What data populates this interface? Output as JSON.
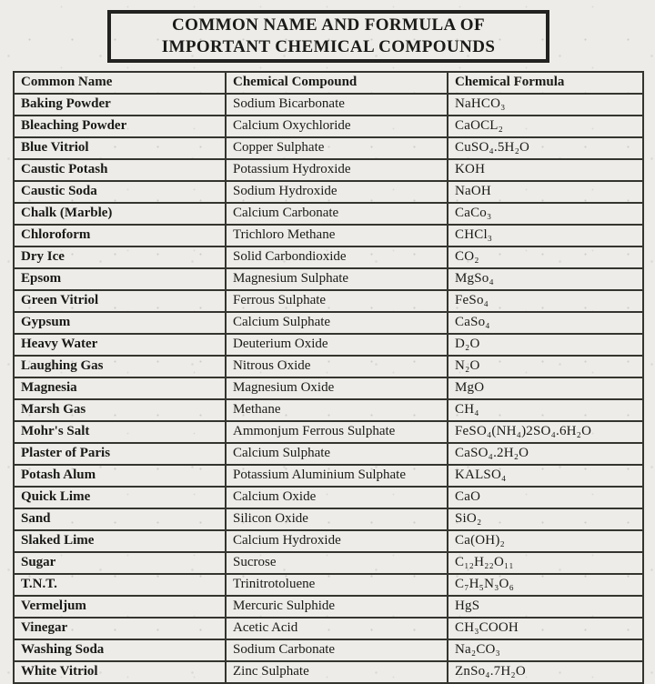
{
  "colors": {
    "paper": "#edece8",
    "ink": "#1a1a18",
    "border": "#35352f"
  },
  "title": {
    "line1": "COMMON NAME AND FORMULA OF",
    "line2": "IMPORTANT CHEMICAL COMPOUNDS"
  },
  "table": {
    "headers": [
      "Common Name",
      "Chemical Compound",
      "Chemical Formula"
    ],
    "rows": [
      {
        "common_name": "Baking Powder",
        "compound": "Sodium Bicarbonate",
        "formula": "NaHCO₃"
      },
      {
        "common_name": "Bleaching Powder",
        "compound": "Calcium Oxychloride",
        "formula": "CaOCL₂"
      },
      {
        "common_name": "Blue Vitriol",
        "compound": "Copper Sulphate",
        "formula": "CuSO₄.5H₂O"
      },
      {
        "common_name": "Caustic Potash",
        "compound": "Potassium Hydroxide",
        "formula": "KOH"
      },
      {
        "common_name": "Caustic Soda",
        "compound": "Sodium Hydroxide",
        "formula": "NaOH"
      },
      {
        "common_name": "Chalk (Marble)",
        "compound": "Calcium Carbonate",
        "formula": "CaCo₃"
      },
      {
        "common_name": "Chloroform",
        "compound": "Trichloro Methane",
        "formula": "CHCl₃"
      },
      {
        "common_name": "Dry Ice",
        "compound": "Solid Carbondioxide",
        "formula": "CO₂"
      },
      {
        "common_name": "Epsom",
        "compound": "Magnesium Sulphate",
        "formula": "MgSo₄"
      },
      {
        "common_name": "Green Vitriol",
        "compound": "Ferrous Sulphate",
        "formula": "FeSo₄"
      },
      {
        "common_name": "Gypsum",
        "compound": "Calcium Sulphate",
        "formula": "CaSo₄"
      },
      {
        "common_name": "Heavy Water",
        "compound": "Deuterium Oxide",
        "formula": "D₂O"
      },
      {
        "common_name": "Laughing Gas",
        "compound": "Nitrous Oxide",
        "formula": "N₂O"
      },
      {
        "common_name": "Magnesia",
        "compound": "Magnesium Oxide",
        "formula": "MgO"
      },
      {
        "common_name": "Marsh Gas",
        "compound": "Methane",
        "formula": "CH₄"
      },
      {
        "common_name": "Mohr's Salt",
        "compound": "Ammonjum Ferrous Sulphate",
        "formula": "FeSO₄(NH₄)2SO₄.6H₂O"
      },
      {
        "common_name": "Plaster of Paris",
        "compound": "Calcium Sulphate",
        "formula": "CaSO₄.2H₂O"
      },
      {
        "common_name": "Potash Alum",
        "compound": "Potassium Aluminium Sulphate",
        "formula": "KALSO₄"
      },
      {
        "common_name": "Quick Lime",
        "compound": "Calcium Oxide",
        "formula": "CaO"
      },
      {
        "common_name": "Sand",
        "compound": "Silicon Oxide",
        "formula": "SiO₂"
      },
      {
        "common_name": "Slaked Lime",
        "compound": "Calcium Hydroxide",
        "formula": "Ca(OH)₂"
      },
      {
        "common_name": "Sugar",
        "compound": "Sucrose",
        "formula": "C₁₂H₂₂O₁₁"
      },
      {
        "common_name": "T.N.T.",
        "compound": "Trinitrotoluene",
        "formula": "C₇H₅N₃O₆"
      },
      {
        "common_name": "Vermeljum",
        "compound": "Mercuric Sulphide",
        "formula": "HgS"
      },
      {
        "common_name": "Vinegar",
        "compound": "Acetic Acid",
        "formula": "CH₃COOH"
      },
      {
        "common_name": "Washing Soda",
        "compound": "Sodium Carbonate",
        "formula": "Na₂CO₃"
      },
      {
        "common_name": "White Vitriol",
        "compound": "Zinc Sulphate",
        "formula": "ZnSo₄.7H₂O"
      }
    ]
  }
}
